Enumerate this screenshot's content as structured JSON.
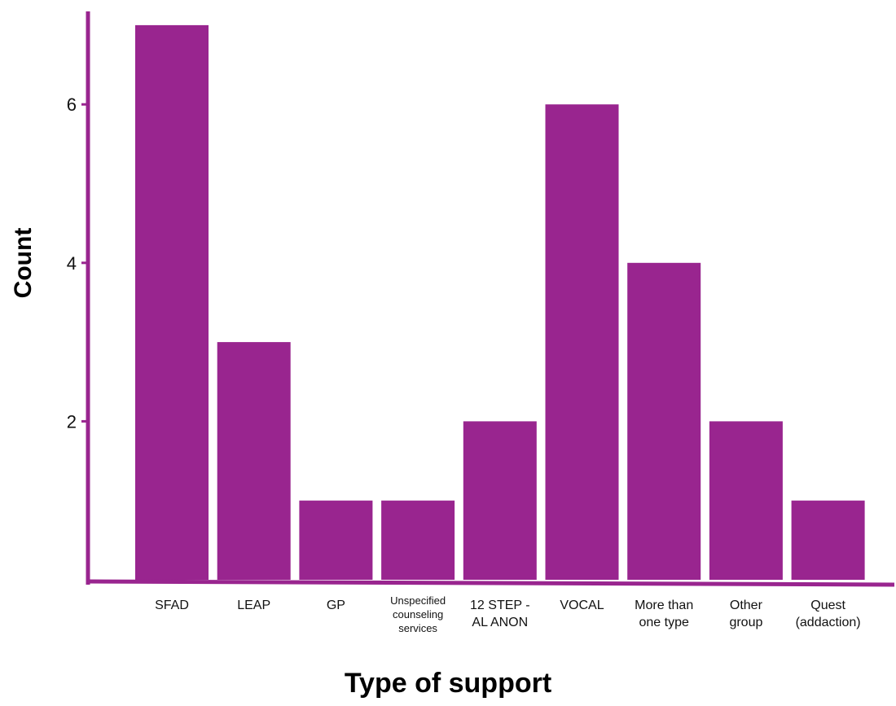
{
  "chart_data": {
    "type": "bar",
    "title": "",
    "xlabel": "Type of support",
    "ylabel": "Count",
    "categories": [
      "SFAD",
      "LEAP",
      "GP",
      "Unspecified counseling services",
      "12 STEP - AL ANON",
      "VOCAL",
      "More than one type",
      "Other group",
      "Quest (addaction)"
    ],
    "category_lines": [
      [
        "SFAD"
      ],
      [
        "LEAP"
      ],
      [
        "GP"
      ],
      [
        "Unspecified",
        "counseling",
        "services"
      ],
      [
        "12 STEP -",
        "AL ANON"
      ],
      [
        "VOCAL"
      ],
      [
        "More than",
        "one type"
      ],
      [
        "Other",
        "group"
      ],
      [
        "Quest",
        "(addaction)"
      ]
    ],
    "values": [
      7,
      3,
      1,
      1,
      2,
      6,
      4,
      2,
      1
    ],
    "yticks": [
      2,
      4,
      6
    ],
    "ylim": [
      0,
      7.2
    ],
    "grid": false,
    "legend": "none",
    "colors": {
      "bar": "#99258f",
      "axis": "#99258f"
    }
  }
}
